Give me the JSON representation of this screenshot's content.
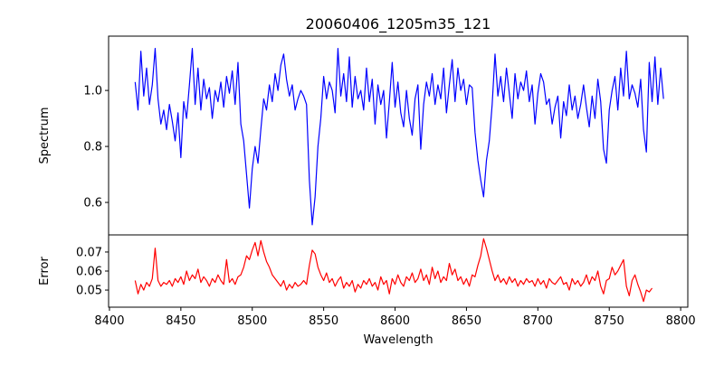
{
  "chart_data": [
    {
      "type": "line",
      "title": "20060406_1205m35_121",
      "xlabel": "",
      "ylabel": "Spectrum",
      "xlim": [
        8399.4,
        8805
      ],
      "ylim": [
        0.484,
        1.194
      ],
      "xticks": [
        8400,
        8450,
        8500,
        8550,
        8600,
        8650,
        8700,
        8750,
        8800
      ],
      "yticks": [
        0.6,
        0.8,
        1.0
      ],
      "ytick_labels": [
        "0.6",
        "0.8",
        "1.0"
      ],
      "grid": false,
      "color": "#0000ff",
      "x_start": 8418,
      "x_step": 2,
      "values": [
        1.03,
        0.93,
        1.14,
        0.98,
        1.08,
        0.95,
        1.02,
        1.15,
        0.97,
        0.88,
        0.93,
        0.86,
        0.95,
        0.89,
        0.82,
        0.92,
        0.76,
        0.96,
        0.9,
        1.02,
        1.15,
        0.95,
        1.08,
        0.93,
        1.04,
        0.97,
        1.01,
        0.9,
        1.0,
        0.96,
        1.03,
        0.94,
        1.05,
        0.99,
        1.07,
        0.95,
        1.1,
        0.88,
        0.82,
        0.7,
        0.58,
        0.72,
        0.8,
        0.74,
        0.86,
        0.97,
        0.93,
        1.02,
        0.96,
        1.06,
        1.0,
        1.09,
        1.13,
        1.04,
        0.98,
        1.02,
        0.93,
        0.97,
        1.0,
        0.98,
        0.95,
        0.68,
        0.52,
        0.62,
        0.8,
        0.9,
        1.05,
        0.97,
        1.03,
        1.0,
        0.92,
        1.15,
        0.98,
        1.06,
        0.96,
        1.12,
        0.94,
        1.05,
        0.97,
        1.0,
        0.93,
        1.08,
        0.96,
        1.04,
        0.88,
        1.02,
        0.95,
        1.0,
        0.83,
        0.96,
        1.1,
        0.94,
        1.03,
        0.92,
        0.87,
        1.0,
        0.9,
        0.84,
        0.97,
        1.02,
        0.79,
        0.95,
        1.03,
        0.98,
        1.06,
        0.95,
        1.02,
        0.97,
        1.08,
        0.92,
        1.02,
        1.11,
        0.96,
        1.08,
        1.0,
        1.04,
        0.95,
        1.02,
        1.01,
        0.85,
        0.75,
        0.68,
        0.62,
        0.75,
        0.82,
        0.95,
        1.13,
        0.98,
        1.05,
        0.96,
        1.08,
        0.99,
        0.9,
        1.06,
        0.97,
        1.03,
        1.0,
        1.07,
        0.96,
        1.02,
        0.88,
        0.99,
        1.06,
        1.03,
        0.95,
        0.97,
        0.88,
        0.94,
        0.98,
        0.83,
        0.96,
        0.91,
        1.02,
        0.93,
        0.98,
        0.9,
        0.95,
        1.02,
        0.94,
        0.87,
        0.98,
        0.9,
        1.04,
        0.96,
        0.79,
        0.74,
        0.93,
        1.0,
        1.05,
        0.93,
        1.08,
        0.98,
        1.14,
        0.97,
        1.02,
        0.99,
        0.94,
        1.04,
        0.86,
        0.78,
        1.1,
        0.96,
        1.12,
        0.95,
        1.08,
        0.97
      ]
    },
    {
      "type": "line",
      "xlabel": "Wavelength",
      "ylabel": "Error",
      "xlim": [
        8399.4,
        8805
      ],
      "ylim": [
        0.041,
        0.079
      ],
      "xticks": [
        8400,
        8450,
        8500,
        8550,
        8600,
        8650,
        8700,
        8750,
        8800
      ],
      "xtick_labels": [
        "8400",
        "8450",
        "8500",
        "8550",
        "8600",
        "8650",
        "8700",
        "8750",
        "8800"
      ],
      "yticks": [
        0.05,
        0.06,
        0.07
      ],
      "ytick_labels": [
        "0.05",
        "0.06",
        "0.07"
      ],
      "grid": false,
      "color": "#ff0000",
      "x_start": 8418,
      "x_step": 2,
      "values": [
        0.055,
        0.048,
        0.053,
        0.05,
        0.054,
        0.052,
        0.056,
        0.072,
        0.055,
        0.052,
        0.054,
        0.053,
        0.055,
        0.052,
        0.056,
        0.054,
        0.057,
        0.053,
        0.06,
        0.055,
        0.058,
        0.056,
        0.061,
        0.054,
        0.057,
        0.055,
        0.052,
        0.056,
        0.054,
        0.058,
        0.055,
        0.053,
        0.066,
        0.054,
        0.056,
        0.053,
        0.057,
        0.058,
        0.062,
        0.068,
        0.066,
        0.071,
        0.075,
        0.068,
        0.076,
        0.07,
        0.065,
        0.062,
        0.058,
        0.056,
        0.054,
        0.052,
        0.055,
        0.05,
        0.053,
        0.051,
        0.054,
        0.052,
        0.053,
        0.055,
        0.053,
        0.063,
        0.071,
        0.069,
        0.062,
        0.058,
        0.055,
        0.059,
        0.054,
        0.056,
        0.052,
        0.055,
        0.057,
        0.051,
        0.054,
        0.052,
        0.055,
        0.049,
        0.053,
        0.051,
        0.055,
        0.053,
        0.056,
        0.052,
        0.054,
        0.05,
        0.057,
        0.053,
        0.055,
        0.048,
        0.056,
        0.053,
        0.058,
        0.054,
        0.052,
        0.057,
        0.055,
        0.059,
        0.054,
        0.056,
        0.061,
        0.055,
        0.058,
        0.053,
        0.062,
        0.056,
        0.06,
        0.054,
        0.057,
        0.055,
        0.064,
        0.058,
        0.061,
        0.055,
        0.057,
        0.053,
        0.056,
        0.052,
        0.058,
        0.057,
        0.063,
        0.068,
        0.077,
        0.072,
        0.066,
        0.06,
        0.055,
        0.058,
        0.054,
        0.056,
        0.053,
        0.057,
        0.054,
        0.056,
        0.052,
        0.055,
        0.053,
        0.056,
        0.054,
        0.055,
        0.052,
        0.056,
        0.053,
        0.055,
        0.051,
        0.056,
        0.054,
        0.053,
        0.055,
        0.057,
        0.053,
        0.054,
        0.05,
        0.056,
        0.053,
        0.055,
        0.052,
        0.054,
        0.058,
        0.053,
        0.057,
        0.055,
        0.06,
        0.052,
        0.048,
        0.055,
        0.056,
        0.062,
        0.058,
        0.06,
        0.063,
        0.066,
        0.052,
        0.047,
        0.055,
        0.058,
        0.053,
        0.049,
        0.044,
        0.05,
        0.049,
        0.051
      ]
    }
  ]
}
